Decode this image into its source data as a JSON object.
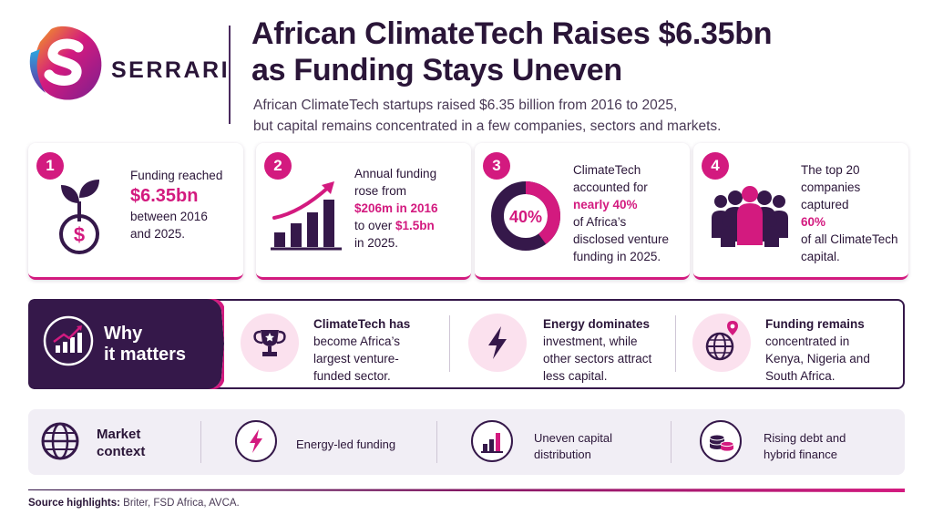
{
  "header": {
    "brand": "SERRARI",
    "title_line1": "African ClimateTech Raises $6.35bn",
    "title_line2": "as Funding Stays Uneven",
    "subtitle_line1": "African ClimateTech startups raised $6.35 billion from 2016 to 2025,",
    "subtitle_line2": "but capital remains concentrated in a few companies, sectors and markets."
  },
  "cards": [
    {
      "number": "1",
      "icon": "money-plant-icon",
      "line1": "Funding reached",
      "highlight": "$6.35bn",
      "line3": "between 2016",
      "line4": "and 2025."
    },
    {
      "number": "2",
      "icon": "growth-bar-chart-icon",
      "line1": "Annual funding",
      "line2": "rose from",
      "highlight1": "$206m in 2016",
      "line4_pre": "to over ",
      "highlight2": "$1.5bn",
      "line5": "in 2025."
    },
    {
      "number": "3",
      "icon": "donut-chart-icon",
      "donut_label": "40%",
      "donut_fraction": 0.4,
      "line1": "ClimateTech",
      "line2": "accounted for",
      "highlight": "nearly 40%",
      "line4": "of Africa’s",
      "line5": "disclosed venture",
      "line6": "funding in 2025."
    },
    {
      "number": "4",
      "icon": "group-people-icon",
      "line1": "The top 20",
      "line2": "companies",
      "line3": "captured",
      "highlight": "60%",
      "line5": "of all ClimateTech",
      "line6": "capital."
    }
  ],
  "why": {
    "title_line1": "Why",
    "title_line2": "it matters",
    "items": [
      {
        "icon": "trophy-icon",
        "bold1": "ClimateTech has",
        "line2": "become Africa’s",
        "line3": "largest venture-",
        "line4": "funded sector."
      },
      {
        "icon": "lightning-icon",
        "bold1": "Energy dominates",
        "line2": "investment, while",
        "line3": "other sectors attract",
        "line4": "less capital."
      },
      {
        "icon": "globe-pin-icon",
        "bold1": "Funding remains",
        "line2": "concentrated in",
        "line3": "Kenya, Nigeria and",
        "line4": "South Africa."
      }
    ]
  },
  "market": {
    "title_line1": "Market",
    "title_line2": "context",
    "items": [
      {
        "icon": "lightning-icon",
        "line1": "Energy-led funding",
        "line2": ""
      },
      {
        "icon": "bar-chart-icon",
        "line1": "Uneven capital",
        "line2": "distribution"
      },
      {
        "icon": "coins-icon",
        "line1": "Rising debt and",
        "line2": "hybrid finance"
      }
    ]
  },
  "source": {
    "label": "Source highlights:",
    "text": "Briter, FSD Africa, AVCA."
  },
  "colors": {
    "accent": "#d31a7f",
    "dark": "#35184a",
    "soft_pink": "#fbe1ee",
    "panel": "#f1eef5"
  }
}
